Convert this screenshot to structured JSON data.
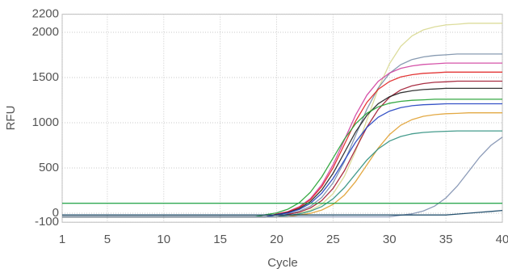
{
  "chart_data": {
    "type": "line",
    "x_label": "Cycle",
    "y_label": "RFU",
    "x": [
      1,
      2,
      3,
      4,
      5,
      6,
      7,
      8,
      9,
      10,
      11,
      12,
      13,
      14,
      15,
      16,
      17,
      18,
      19,
      20,
      21,
      22,
      23,
      24,
      25,
      26,
      27,
      28,
      29,
      30,
      31,
      32,
      33,
      34,
      35,
      36,
      37,
      38,
      39,
      40
    ],
    "xlim": [
      1,
      40
    ],
    "xticks": [
      1,
      5,
      10,
      15,
      20,
      25,
      30,
      35,
      40
    ],
    "ylim": [
      -100,
      2200
    ],
    "yticks": [
      -100,
      0,
      500,
      1000,
      1500,
      2000,
      2200
    ],
    "grid": true,
    "series": [
      {
        "color": "#d8d890",
        "values": [
          -40,
          -40,
          -40,
          -40,
          -40,
          -40,
          -40,
          -40,
          -40,
          -40,
          -40,
          -40,
          -40,
          -40,
          -40,
          -40,
          -40,
          -40,
          -40,
          -40,
          -40,
          -2,
          33,
          99,
          215,
          407,
          685,
          1030,
          1375,
          1653,
          1845,
          1961,
          2027,
          2061,
          2081,
          2089,
          2100,
          2100,
          2100,
          2100
        ]
      },
      {
        "color": "#7a8fa8",
        "values": [
          -40,
          -40,
          -40,
          -40,
          -40,
          -40,
          -40,
          -40,
          -40,
          -40,
          -40,
          -40,
          -40,
          -40,
          -40,
          -40,
          -40,
          -40,
          -40,
          -40,
          -8,
          21,
          77,
          174,
          336,
          570,
          860,
          1150,
          1384,
          1546,
          1643,
          1699,
          1728,
          1744,
          1751,
          1760,
          1760,
          1760,
          1760,
          1760
        ]
      },
      {
        "color": "#d040a0",
        "values": [
          -40,
          -40,
          -40,
          -40,
          -40,
          -40,
          -40,
          -40,
          -40,
          -40,
          -40,
          -40,
          -40,
          -40,
          -40,
          -40,
          -40,
          -40,
          -40,
          -9,
          18,
          71,
          162,
          315,
          536,
          810,
          1084,
          1305,
          1458,
          1550,
          1602,
          1629,
          1645,
          1652,
          1660,
          1660,
          1660,
          1660,
          1660,
          1660
        ]
      },
      {
        "color": "#e02020",
        "values": [
          -40,
          -40,
          -40,
          -40,
          -40,
          -40,
          -40,
          -40,
          -40,
          -40,
          -40,
          -40,
          -40,
          -40,
          -40,
          -40,
          -40,
          -40,
          -40,
          -11,
          14,
          64,
          150,
          294,
          502,
          760,
          1018,
          1226,
          1370,
          1456,
          1506,
          1531,
          1546,
          1552,
          1560,
          1560,
          1560,
          1560,
          1560,
          1560
        ]
      },
      {
        "color": "#a01830",
        "values": [
          -40,
          -40,
          -40,
          -40,
          -40,
          -40,
          -40,
          -40,
          -40,
          -40,
          -40,
          -40,
          -40,
          -40,
          -40,
          -40,
          -40,
          -40,
          -40,
          -40,
          -13,
          11,
          58,
          139,
          274,
          469,
          710,
          952,
          1147,
          1282,
          1363,
          1409,
          1433,
          1447,
          1453,
          1460,
          1460,
          1460,
          1460,
          1460
        ]
      },
      {
        "color": "#202020",
        "values": [
          -40,
          -40,
          -40,
          -40,
          -40,
          -40,
          -40,
          -40,
          -40,
          -40,
          -40,
          -40,
          -40,
          -40,
          -40,
          -40,
          -40,
          -40,
          -40,
          -14,
          8,
          52,
          129,
          257,
          441,
          670,
          899,
          1083,
          1211,
          1288,
          1332,
          1354,
          1367,
          1373,
          1380,
          1380,
          1380,
          1380,
          1380,
          1380
        ]
      },
      {
        "color": "#20a030",
        "values": [
          -40,
          -40,
          -40,
          -40,
          -40,
          -40,
          -40,
          -40,
          -40,
          -40,
          -40,
          -40,
          -40,
          -40,
          -40,
          -40,
          -40,
          -40,
          -17,
          4,
          45,
          115,
          232,
          401,
          610,
          819,
          988,
          1105,
          1176,
          1216,
          1237,
          1248,
          1254,
          1260,
          1260,
          1260,
          1260,
          1260,
          1260,
          1260
        ]
      },
      {
        "color": "#2040c0",
        "values": [
          -40,
          -40,
          -40,
          -40,
          -40,
          -40,
          -40,
          -40,
          -40,
          -40,
          -40,
          -40,
          -40,
          -40,
          -40,
          -40,
          -40,
          -40,
          -40,
          -17,
          3,
          41,
          109,
          221,
          384,
          585,
          786,
          949,
          1061,
          1129,
          1168,
          1188,
          1199,
          1204,
          1210,
          1210,
          1210,
          1210,
          1210,
          1210
        ]
      },
      {
        "color": "#e0a030",
        "values": [
          -40,
          -40,
          -40,
          -40,
          -40,
          -40,
          -40,
          -40,
          -40,
          -40,
          -40,
          -40,
          -40,
          -40,
          -40,
          -40,
          -40,
          -40,
          -40,
          -40,
          -40,
          -19,
          -1,
          35,
          97,
          200,
          350,
          535,
          720,
          870,
          973,
          1035,
          1071,
          1089,
          1100,
          1104,
          1110,
          1110,
          1110,
          1110
        ]
      },
      {
        "color": "#309080",
        "values": [
          -40,
          -40,
          -40,
          -40,
          -40,
          -40,
          -40,
          -40,
          -40,
          -40,
          -40,
          -40,
          -40,
          -40,
          -40,
          -40,
          -40,
          -40,
          -40,
          -40,
          -23,
          -8,
          22,
          73,
          159,
          282,
          435,
          588,
          711,
          797,
          848,
          878,
          893,
          901,
          905,
          910,
          910,
          910,
          910,
          910
        ]
      },
      {
        "color": "#8090b0",
        "values": [
          -40,
          -40,
          -40,
          -40,
          -40,
          -40,
          -40,
          -40,
          -40,
          -40,
          -40,
          -40,
          -40,
          -40,
          -40,
          -40,
          -40,
          -40,
          -40,
          -40,
          -40,
          -40,
          -40,
          -40,
          -40,
          -40,
          -40,
          -40,
          -40,
          -40,
          -22,
          -6,
          25,
          79,
          169,
          299,
          460,
          621,
          751,
          841
        ]
      },
      {
        "color": "#18a040",
        "values": [
          110,
          110,
          110,
          110,
          110,
          110,
          110,
          110,
          110,
          110,
          110,
          110,
          110,
          110,
          110,
          110,
          110,
          110,
          110,
          110,
          110,
          110,
          110,
          110,
          110,
          110,
          110,
          110,
          110,
          110,
          110,
          110,
          110,
          110,
          110,
          110,
          110,
          110,
          110,
          110
        ]
      },
      {
        "color": "#104060",
        "values": [
          -20,
          -20,
          -20,
          -20,
          -20,
          -20,
          -20,
          -20,
          -20,
          -20,
          -20,
          -20,
          -20,
          -20,
          -20,
          -20,
          -20,
          -20,
          -20,
          -20,
          -20,
          -20,
          -20,
          -20,
          -20,
          -20,
          -20,
          -20,
          -20,
          -20,
          -20,
          -20,
          -20,
          -20,
          -20,
          -10,
          0,
          10,
          20,
          30
        ]
      }
    ]
  }
}
